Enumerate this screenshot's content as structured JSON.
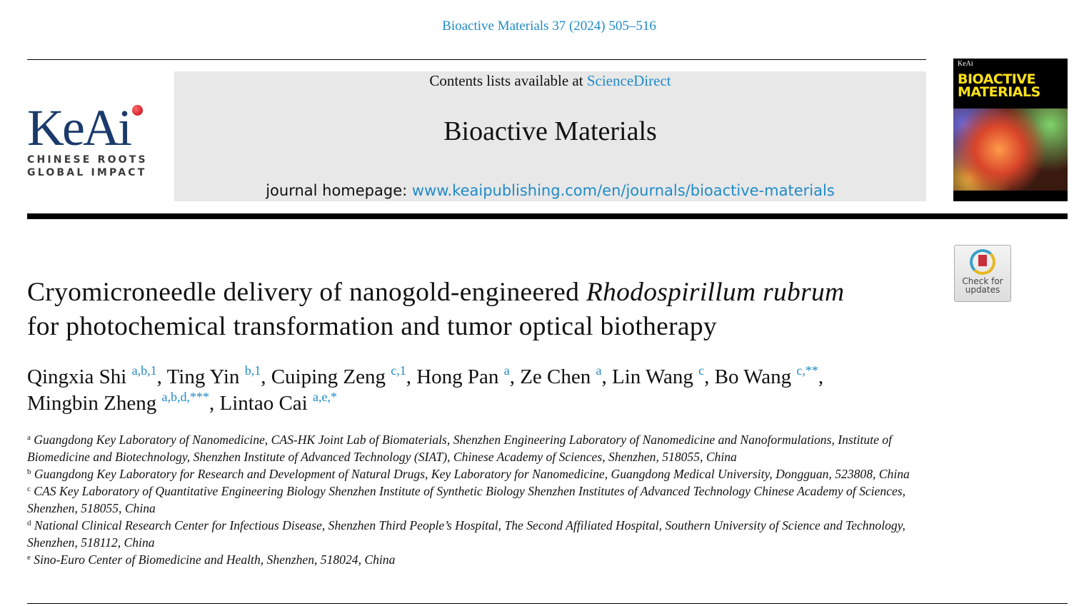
{
  "journal_reference": "Bioactive Materials 37 (2024) 505–516",
  "logo": {
    "text": "KeAi",
    "tagline_1": "CHINESE ROOTS",
    "tagline_2": "GLOBAL IMPACT"
  },
  "banner": {
    "contents_prefix": "Contents lists available at ",
    "contents_link": "ScienceDirect",
    "journal_title": "Bioactive Materials",
    "homepage_prefix": "journal homepage: ",
    "homepage_link": "www.keaipublishing.com/en/journals/bioactive-materials"
  },
  "cover": {
    "publisher": "KeAi",
    "title_1": "BIOACTIVE",
    "title_2": "MATERIALS"
  },
  "check_updates": {
    "line_1": "Check for",
    "line_2": "updates"
  },
  "article": {
    "title_part1": "Cryomicroneedle delivery of nanogold-engineered ",
    "title_italic": "Rhodospirillum rubrum",
    "title_part2": "for photochemical transformation and tumor optical biotherapy",
    "authors": [
      {
        "name": "Qingxia Shi",
        "sup": "a,b,1"
      },
      {
        "name": "Ting Yin",
        "sup": "b,1"
      },
      {
        "name": "Cuiping Zeng",
        "sup": "c,1"
      },
      {
        "name": "Hong Pan",
        "sup": "a"
      },
      {
        "name": "Ze Chen",
        "sup": "a"
      },
      {
        "name": "Lin Wang",
        "sup": "c"
      },
      {
        "name": "Bo Wang",
        "sup": "c,**"
      },
      {
        "name": "Mingbin Zheng",
        "sup": "a,b,d,***"
      },
      {
        "name": "Lintao Cai",
        "sup": "a,e,*"
      }
    ],
    "affiliations": [
      {
        "label": "a",
        "text": "Guangdong Key Laboratory of Nanomedicine, CAS-HK Joint Lab of Biomaterials, Shenzhen Engineering Laboratory of Nanomedicine and Nanoformulations, Institute of Biomedicine and Biotechnology, Shenzhen Institute of Advanced Technology (SIAT), Chinese Academy of Sciences, Shenzhen, 518055, China"
      },
      {
        "label": "b",
        "text": "Guangdong Key Laboratory for Research and Development of Natural Drugs, Key Laboratory for Nanomedicine, Guangdong Medical University, Dongguan, 523808, China"
      },
      {
        "label": "c",
        "text": "CAS Key Laboratory of Quantitative Engineering Biology Shenzhen Institute of Synthetic Biology Shenzhen Institutes of Advanced Technology Chinese Academy of Sciences, Shenzhen, 518055, China"
      },
      {
        "label": "d",
        "text": "National Clinical Research Center for Infectious Disease, Shenzhen Third People’s Hospital, The Second Affiliated Hospital, Southern University of Science and Technology, Shenzhen, 518112, China"
      },
      {
        "label": "e",
        "text": "Sino-Euro Center of Biomedicine and Health, Shenzhen, 518024, China"
      }
    ]
  },
  "colors": {
    "link": "#1f8bc7",
    "logo": "#1b3a6b",
    "banner_bg": "#e8e8e8"
  }
}
